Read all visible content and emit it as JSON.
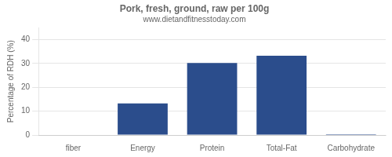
{
  "chart_data": {
    "type": "bar",
    "title": "Pork, fresh, ground, raw per 100g",
    "subtitle": "www.dietandfitnesstoday.com",
    "ylabel": "Percentage of RDH (%)",
    "categories": [
      "fiber",
      "Energy",
      "Protein",
      "Total-Fat",
      "Carbohydrate"
    ],
    "values": [
      0,
      13.3,
      30.2,
      33.3,
      0.3
    ],
    "color": "#2b4d8c",
    "ylim": [
      0,
      45
    ],
    "yticks": [
      0,
      10,
      20,
      30,
      40
    ],
    "grid": true
  }
}
